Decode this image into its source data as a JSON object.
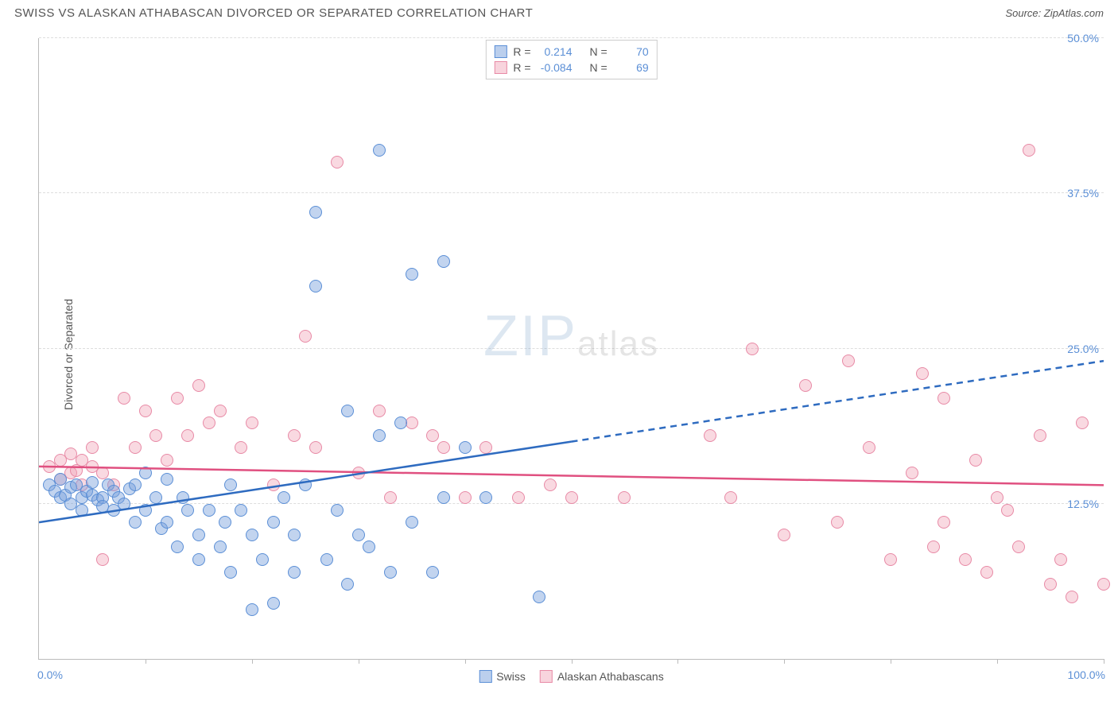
{
  "header": {
    "title": "SWISS VS ALASKAN ATHABASCAN DIVORCED OR SEPARATED CORRELATION CHART",
    "source_prefix": "Source: ",
    "source_name": "ZipAtlas.com"
  },
  "chart": {
    "type": "scatter",
    "y_axis_label": "Divorced or Separated",
    "xlim": [
      0,
      100
    ],
    "ylim": [
      0,
      50
    ],
    "x_labels": {
      "min": "0.0%",
      "max": "100.0%"
    },
    "y_gridlines": [
      {
        "value": 12.5,
        "label": "12.5%"
      },
      {
        "value": 25.0,
        "label": "25.0%"
      },
      {
        "value": 37.5,
        "label": "37.5%"
      },
      {
        "value": 50.0,
        "label": "50.0%"
      }
    ],
    "x_ticks": [
      10,
      20,
      30,
      40,
      50,
      60,
      70,
      80,
      90,
      100
    ],
    "marker_radius": 8,
    "background_color": "#ffffff",
    "grid_color": "#dddddd",
    "watermark": {
      "bold": "ZIP",
      "light": "atlas"
    },
    "legend_top": {
      "series": [
        {
          "swatch": "blue",
          "r_label": "R =",
          "r_value": "0.214",
          "n_label": "N =",
          "n_value": "70"
        },
        {
          "swatch": "pink",
          "r_label": "R =",
          "r_value": "-0.084",
          "n_label": "N =",
          "n_value": "69"
        }
      ]
    },
    "legend_bottom": {
      "items": [
        {
          "swatch": "blue",
          "label": "Swiss"
        },
        {
          "swatch": "pink",
          "label": "Alaskan Athabascans"
        }
      ]
    },
    "series": {
      "swiss": {
        "color_fill": "rgba(120,160,220,0.45)",
        "color_stroke": "#5b8fd6",
        "trend": {
          "x1": 0,
          "y1": 11,
          "x2": 100,
          "y2": 24,
          "solid_until_x": 50,
          "stroke": "#2e6bc0",
          "width": 2.5
        },
        "points": [
          [
            1,
            14
          ],
          [
            1.5,
            13.5
          ],
          [
            2,
            13
          ],
          [
            2,
            14.5
          ],
          [
            2.5,
            13.2
          ],
          [
            3,
            13.8
          ],
          [
            3,
            12.5
          ],
          [
            3.5,
            14
          ],
          [
            4,
            13
          ],
          [
            4,
            12
          ],
          [
            4.5,
            13.5
          ],
          [
            5,
            13.2
          ],
          [
            5,
            14.2
          ],
          [
            5.5,
            12.8
          ],
          [
            6,
            13
          ],
          [
            6,
            12.3
          ],
          [
            6.5,
            14
          ],
          [
            7,
            13.5
          ],
          [
            7,
            12
          ],
          [
            7.5,
            13
          ],
          [
            8,
            12.5
          ],
          [
            8.5,
            13.7
          ],
          [
            9,
            14
          ],
          [
            9,
            11
          ],
          [
            10,
            15
          ],
          [
            10,
            12
          ],
          [
            11,
            13
          ],
          [
            11.5,
            10.5
          ],
          [
            12,
            14.5
          ],
          [
            12,
            11
          ],
          [
            13,
            9
          ],
          [
            13.5,
            13
          ],
          [
            14,
            12
          ],
          [
            15,
            10
          ],
          [
            15,
            8
          ],
          [
            16,
            12
          ],
          [
            17,
            9
          ],
          [
            17.5,
            11
          ],
          [
            18,
            7
          ],
          [
            18,
            14
          ],
          [
            19,
            12
          ],
          [
            20,
            10
          ],
          [
            20,
            4
          ],
          [
            21,
            8
          ],
          [
            22,
            11
          ],
          [
            22,
            4.5
          ],
          [
            23,
            13
          ],
          [
            24,
            10
          ],
          [
            24,
            7
          ],
          [
            25,
            14
          ],
          [
            26,
            30
          ],
          [
            26,
            36
          ],
          [
            27,
            8
          ],
          [
            28,
            12
          ],
          [
            29,
            6
          ],
          [
            29,
            20
          ],
          [
            30,
            10
          ],
          [
            31,
            9
          ],
          [
            32,
            41
          ],
          [
            32,
            18
          ],
          [
            33,
            7
          ],
          [
            34,
            19
          ],
          [
            35,
            11
          ],
          [
            35,
            31
          ],
          [
            37,
            7
          ],
          [
            38,
            13
          ],
          [
            38,
            32
          ],
          [
            40,
            17
          ],
          [
            42,
            13
          ],
          [
            47,
            5
          ]
        ]
      },
      "athabascan": {
        "color_fill": "rgba(240,160,180,0.4)",
        "color_stroke": "#e88aa6",
        "trend": {
          "x1": 0,
          "y1": 15.5,
          "x2": 100,
          "y2": 14,
          "solid_until_x": 100,
          "stroke": "#e05080",
          "width": 2.5
        },
        "points": [
          [
            1,
            15.5
          ],
          [
            2,
            16
          ],
          [
            2,
            14.5
          ],
          [
            3,
            15
          ],
          [
            3,
            16.5
          ],
          [
            3.5,
            15.2
          ],
          [
            4,
            14
          ],
          [
            4,
            16
          ],
          [
            5,
            15.5
          ],
          [
            5,
            17
          ],
          [
            6,
            15
          ],
          [
            6,
            8
          ],
          [
            7,
            14
          ],
          [
            8,
            21
          ],
          [
            9,
            17
          ],
          [
            10,
            20
          ],
          [
            11,
            18
          ],
          [
            12,
            16
          ],
          [
            13,
            21
          ],
          [
            14,
            18
          ],
          [
            15,
            22
          ],
          [
            16,
            19
          ],
          [
            17,
            20
          ],
          [
            19,
            17
          ],
          [
            20,
            19
          ],
          [
            22,
            14
          ],
          [
            24,
            18
          ],
          [
            25,
            26
          ],
          [
            26,
            17
          ],
          [
            28,
            40
          ],
          [
            30,
            15
          ],
          [
            32,
            20
          ],
          [
            33,
            13
          ],
          [
            35,
            19
          ],
          [
            37,
            18
          ],
          [
            38,
            17
          ],
          [
            40,
            13
          ],
          [
            42,
            17
          ],
          [
            45,
            13
          ],
          [
            48,
            14
          ],
          [
            50,
            13
          ],
          [
            55,
            13
          ],
          [
            63,
            18
          ],
          [
            65,
            13
          ],
          [
            67,
            25
          ],
          [
            70,
            10
          ],
          [
            72,
            22
          ],
          [
            75,
            11
          ],
          [
            76,
            24
          ],
          [
            78,
            17
          ],
          [
            80,
            8
          ],
          [
            82,
            15
          ],
          [
            83,
            23
          ],
          [
            84,
            9
          ],
          [
            85,
            21
          ],
          [
            85,
            11
          ],
          [
            87,
            8
          ],
          [
            88,
            16
          ],
          [
            89,
            7
          ],
          [
            90,
            13
          ],
          [
            91,
            12
          ],
          [
            92,
            9
          ],
          [
            93,
            41
          ],
          [
            94,
            18
          ],
          [
            95,
            6
          ],
          [
            96,
            8
          ],
          [
            97,
            5
          ],
          [
            98,
            19
          ],
          [
            100,
            6
          ]
        ]
      }
    }
  }
}
